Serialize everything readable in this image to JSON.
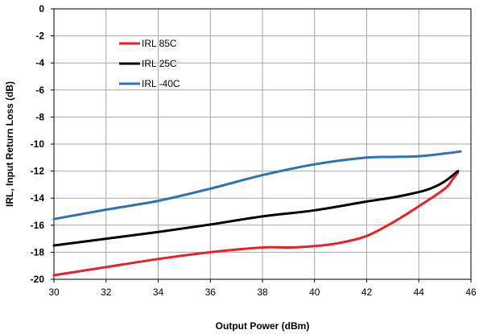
{
  "chart_data": {
    "type": "line",
    "title": "",
    "xlabel": "Output Power (dBm)",
    "ylabel": "IRL, Input Return Loss (dB)",
    "xlim": [
      30,
      46
    ],
    "ylim": [
      -20,
      0
    ],
    "xticks": [
      30,
      32,
      34,
      36,
      38,
      40,
      42,
      44,
      46
    ],
    "yticks": [
      0,
      -2,
      -4,
      -6,
      -8,
      -10,
      -12,
      -14,
      -16,
      -18,
      -20
    ],
    "grid": true,
    "legend_position": "top-left",
    "series": [
      {
        "name": "IRL 85C",
        "color": "#e8202a",
        "points": [
          [
            30,
            -19.7
          ],
          [
            32,
            -19.1
          ],
          [
            34,
            -18.5
          ],
          [
            36,
            -18.0
          ],
          [
            38,
            -17.65
          ],
          [
            39,
            -17.65
          ],
          [
            40,
            -17.55
          ],
          [
            41,
            -17.3
          ],
          [
            42,
            -16.8
          ],
          [
            43,
            -15.8
          ],
          [
            44,
            -14.6
          ],
          [
            45,
            -13.3
          ],
          [
            45.3,
            -12.6
          ],
          [
            45.5,
            -12.1
          ]
        ]
      },
      {
        "name": "IRL 25C",
        "color": "#000000",
        "points": [
          [
            30,
            -17.5
          ],
          [
            32,
            -17.0
          ],
          [
            34,
            -16.5
          ],
          [
            36,
            -15.95
          ],
          [
            38,
            -15.35
          ],
          [
            40,
            -14.9
          ],
          [
            42,
            -14.25
          ],
          [
            43,
            -13.95
          ],
          [
            44,
            -13.55
          ],
          [
            44.5,
            -13.25
          ],
          [
            45,
            -12.75
          ],
          [
            45.5,
            -12.0
          ]
        ]
      },
      {
        "name": "IRL -40C",
        "color": "#2b72b8",
        "points": [
          [
            30,
            -15.55
          ],
          [
            32,
            -14.85
          ],
          [
            34,
            -14.2
          ],
          [
            36,
            -13.3
          ],
          [
            38,
            -12.3
          ],
          [
            40,
            -11.5
          ],
          [
            42,
            -11.0
          ],
          [
            43,
            -10.95
          ],
          [
            44,
            -10.9
          ],
          [
            45,
            -10.7
          ],
          [
            45.6,
            -10.55
          ]
        ]
      }
    ]
  }
}
